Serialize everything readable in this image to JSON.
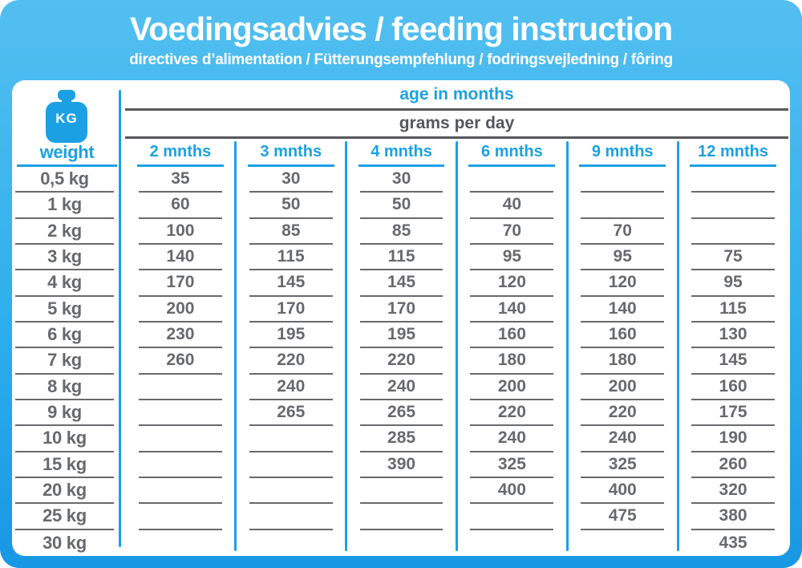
{
  "colors": {
    "accent": "#1BA1E3",
    "gradient_top": "#53BFF0",
    "gradient_bottom": "#1897E4",
    "value_gray": "#67696C",
    "rule_dark": "#55575A"
  },
  "chart_data": {
    "type": "table",
    "title": "Voedingsadvies / feeding instruction",
    "subtitle": "directives d’alimentation / Fütterungsempfehlung / fodringsvejledning / fôring",
    "age_header": "age in months",
    "unit_header": "grams per day",
    "weight_icon_label": "KG",
    "weight_header": "weight",
    "columns": [
      "2 mnths",
      "3 mnths",
      "4 mnths",
      "6 mnths",
      "9 mnths",
      "12 mnths"
    ],
    "rows": [
      {
        "weight": "0,5 kg",
        "values": [
          "35",
          "30",
          "30",
          "",
          "",
          ""
        ]
      },
      {
        "weight": "1 kg",
        "values": [
          "60",
          "50",
          "50",
          "40",
          "",
          ""
        ]
      },
      {
        "weight": "2 kg",
        "values": [
          "100",
          "85",
          "85",
          "70",
          "70",
          ""
        ]
      },
      {
        "weight": "3 kg",
        "values": [
          "140",
          "115",
          "115",
          "95",
          "95",
          "75"
        ]
      },
      {
        "weight": "4 kg",
        "values": [
          "170",
          "145",
          "145",
          "120",
          "120",
          "95"
        ]
      },
      {
        "weight": "5 kg",
        "values": [
          "200",
          "170",
          "170",
          "140",
          "140",
          "115"
        ]
      },
      {
        "weight": "6 kg",
        "values": [
          "230",
          "195",
          "195",
          "160",
          "160",
          "130"
        ]
      },
      {
        "weight": "7 kg",
        "values": [
          "260",
          "220",
          "220",
          "180",
          "180",
          "145"
        ]
      },
      {
        "weight": "8 kg",
        "values": [
          "",
          "240",
          "240",
          "200",
          "200",
          "160"
        ]
      },
      {
        "weight": "9 kg",
        "values": [
          "",
          "265",
          "265",
          "220",
          "220",
          "175"
        ]
      },
      {
        "weight": "10 kg",
        "values": [
          "",
          "",
          "285",
          "240",
          "240",
          "190"
        ]
      },
      {
        "weight": "15 kg",
        "values": [
          "",
          "",
          "390",
          "325",
          "325",
          "260"
        ]
      },
      {
        "weight": "20 kg",
        "values": [
          "",
          "",
          "",
          "400",
          "400",
          "320"
        ]
      },
      {
        "weight": "25 kg",
        "values": [
          "",
          "",
          "",
          "",
          "475",
          "380"
        ]
      },
      {
        "weight": "30 kg",
        "values": [
          "",
          "",
          "",
          "",
          "",
          "435"
        ]
      }
    ]
  }
}
